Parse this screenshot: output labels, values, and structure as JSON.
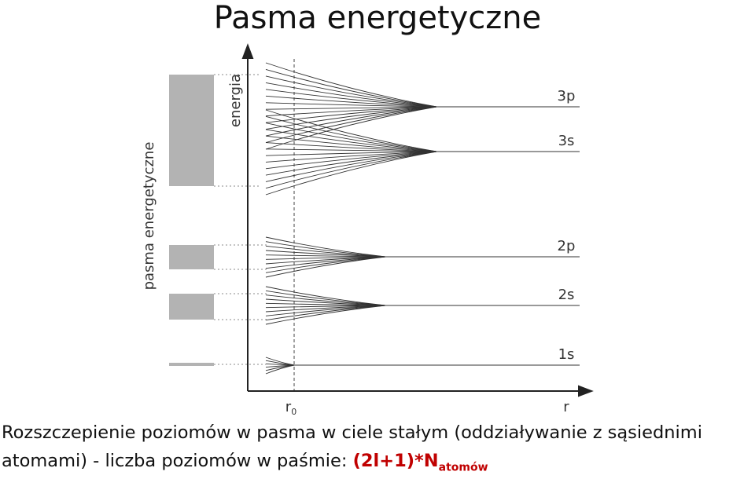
{
  "title": "Pasma energetyczne",
  "diagram": {
    "y_axis_label": "energia",
    "x_axis_label": "r",
    "r0": {
      "base": "r",
      "sub": "0"
    },
    "side_label": "pasma energetyczne",
    "levels": [
      "3p",
      "3s",
      "2p",
      "2s",
      "1s"
    ]
  },
  "caption": {
    "line1": "Rozszczepienie poziomów w pasma w ciele stałym (oddziaływanie z sąsiednimi",
    "line2": "atomami) - liczba poziomów w paśmie:",
    "formula": "(2l+1)*N",
    "formula_sub": "atomów"
  }
}
